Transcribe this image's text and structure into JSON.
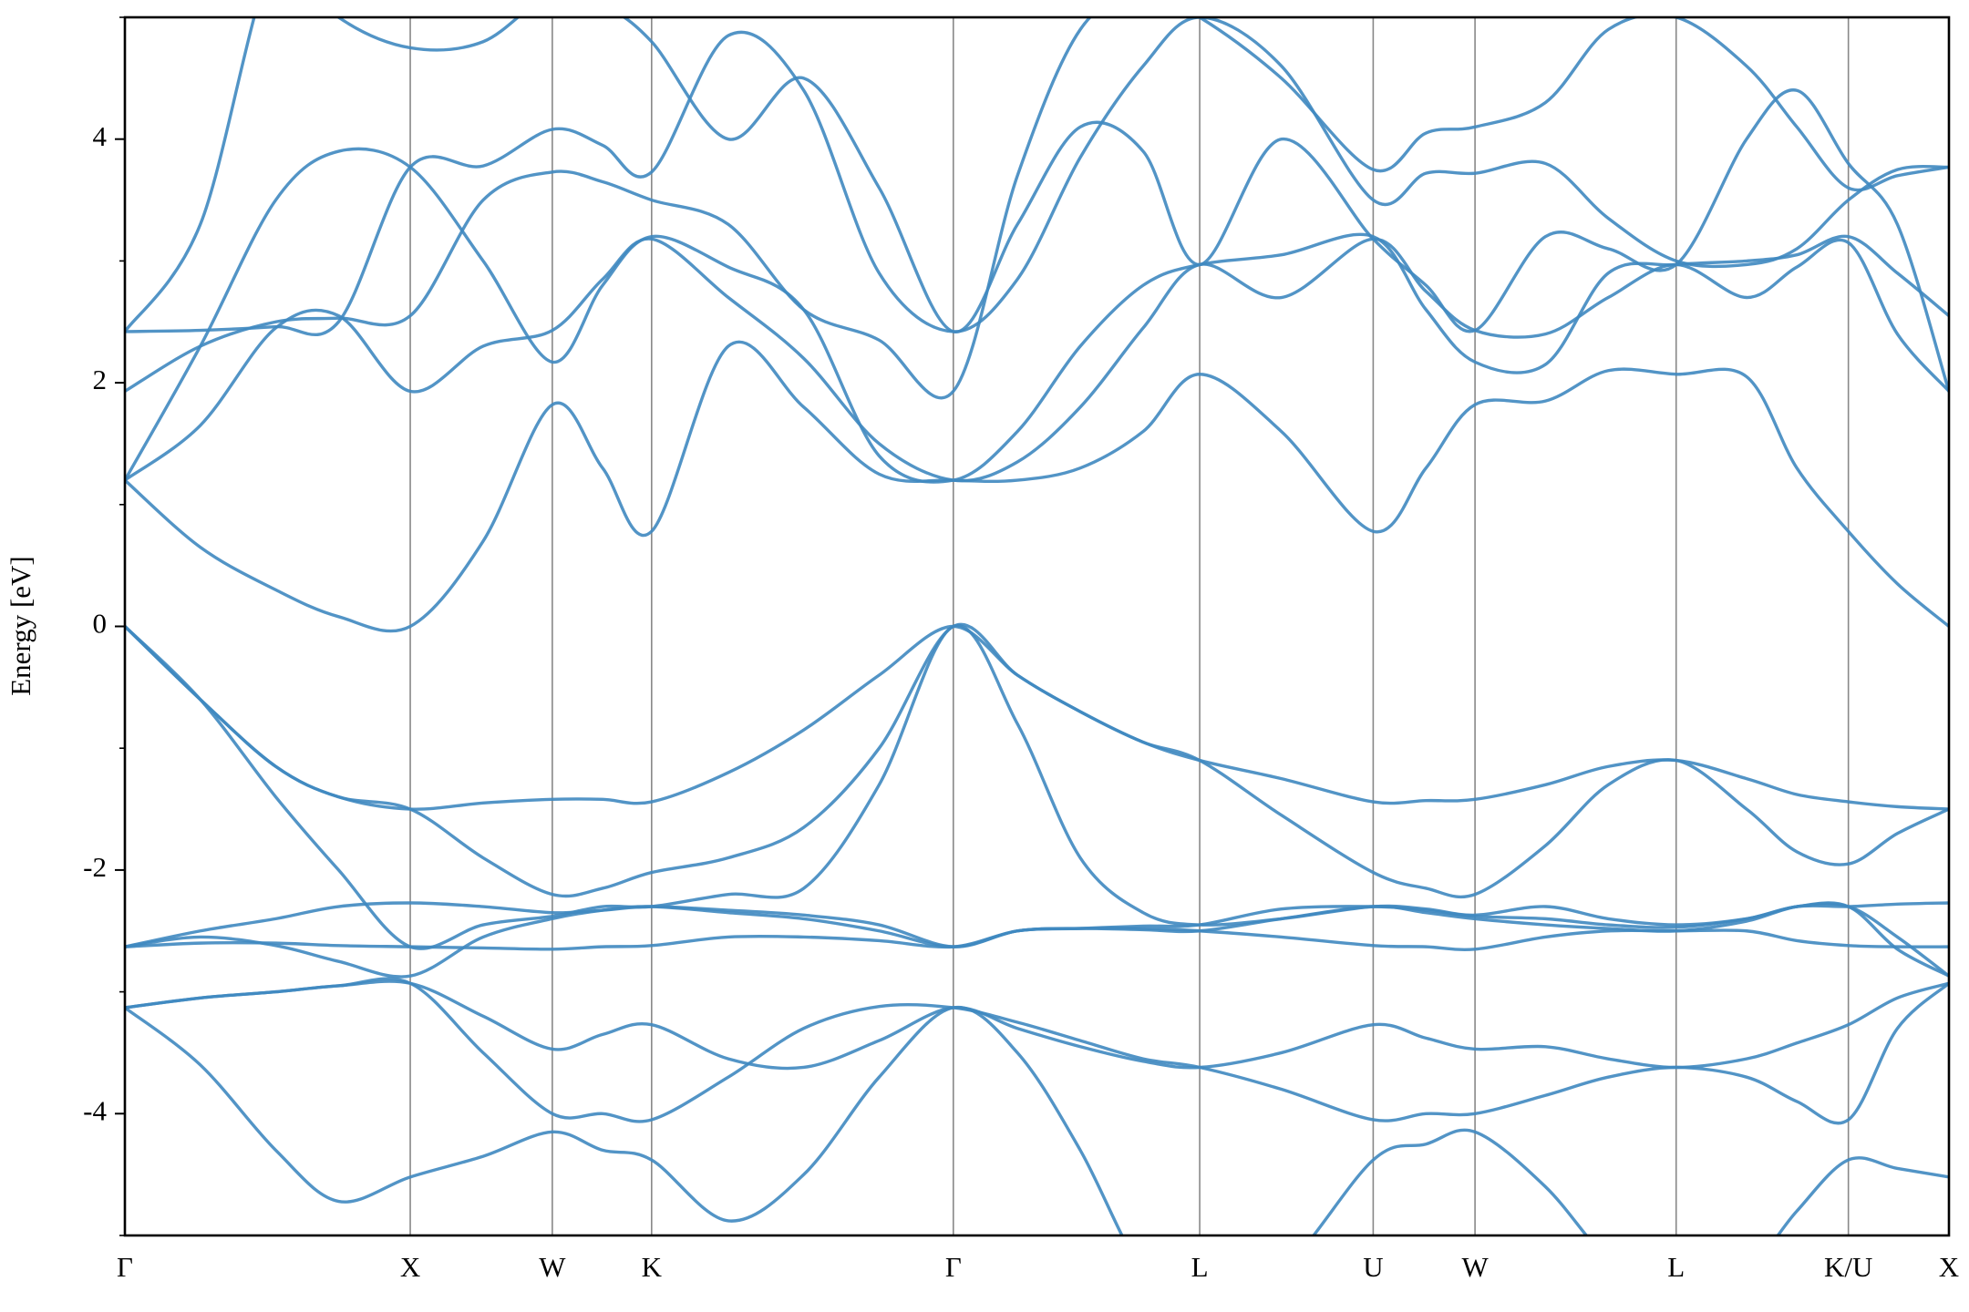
{
  "chart_data": {
    "type": "line",
    "ylabel": "Energy [eV]",
    "color": "#3f88c0",
    "x": [
      0,
      0.6,
      1.2,
      1.7,
      2.27,
      2.85,
      3.4,
      3.8,
      4.19,
      4.8,
      5.4,
      6.0,
      6.59,
      7.1,
      7.6,
      8.1,
      8.55,
      9.2,
      9.93,
      10.35,
      10.74,
      11.3,
      11.8,
      12.34,
      12.9,
      13.3,
      13.71,
      14.1,
      14.51
    ],
    "series": [
      {
        "values": [
          -3.13,
          -3.6,
          -4.3,
          -4.72,
          -4.52,
          -4.35,
          -4.15,
          -4.3,
          -4.38,
          -4.88,
          -4.5,
          -3.7,
          -3.13,
          -3.5,
          -4.3,
          -5.3,
          -5.6,
          -5.3,
          -4.38,
          -4.25,
          -4.15,
          -4.6,
          -5.2,
          -5.6,
          -5.3,
          -4.8,
          -4.38,
          -4.45,
          -4.52
        ]
      },
      {
        "values": [
          -3.13,
          -3.05,
          -3.0,
          -2.95,
          -2.93,
          -3.2,
          -3.47,
          -3.35,
          -3.27,
          -3.55,
          -3.62,
          -3.4,
          -3.13,
          -3.3,
          -3.45,
          -3.57,
          -3.62,
          -3.5,
          -3.27,
          -3.38,
          -3.47,
          -3.45,
          -3.55,
          -3.62,
          -3.55,
          -3.42,
          -3.27,
          -3.05,
          -2.93
        ]
      },
      {
        "values": [
          -3.13,
          -3.05,
          -3.0,
          -2.95,
          -2.93,
          -3.5,
          -4.0,
          -4.0,
          -4.05,
          -3.7,
          -3.3,
          -3.12,
          -3.13,
          -3.25,
          -3.4,
          -3.55,
          -3.62,
          -3.8,
          -4.05,
          -4.0,
          -4.0,
          -3.85,
          -3.7,
          -3.62,
          -3.7,
          -3.9,
          -4.05,
          -3.3,
          -2.93
        ]
      },
      {
        "values": [
          -2.63,
          -2.55,
          -2.62,
          -2.75,
          -2.87,
          -2.55,
          -2.4,
          -2.33,
          -2.3,
          -2.35,
          -2.4,
          -2.5,
          -2.63,
          -2.5,
          -2.48,
          -2.49,
          -2.5,
          -2.4,
          -2.3,
          -2.35,
          -2.4,
          -2.45,
          -2.48,
          -2.5,
          -2.42,
          -2.3,
          -2.3,
          -2.55,
          -2.87
        ]
      },
      {
        "values": [
          -2.63,
          -2.6,
          -2.6,
          -2.62,
          -2.63,
          -2.64,
          -2.65,
          -2.63,
          -2.62,
          -2.55,
          -2.55,
          -2.58,
          -2.63,
          -2.5,
          -2.48,
          -2.48,
          -2.5,
          -2.55,
          -2.62,
          -2.63,
          -2.65,
          -2.55,
          -2.5,
          -2.5,
          -2.5,
          -2.58,
          -2.62,
          -2.63,
          -2.63
        ]
      },
      {
        "values": [
          -2.63,
          -2.5,
          -2.4,
          -2.3,
          -2.27,
          -2.3,
          -2.35,
          -2.33,
          -2.3,
          -2.33,
          -2.37,
          -2.45,
          -2.63,
          -2.5,
          -2.48,
          -2.46,
          -2.45,
          -2.32,
          -2.3,
          -2.33,
          -2.38,
          -2.4,
          -2.45,
          -2.47,
          -2.4,
          -2.3,
          -2.3,
          -2.28,
          -2.27
        ]
      },
      {
        "values": [
          0,
          -0.6,
          -1.4,
          -2.0,
          -2.63,
          -2.45,
          -2.38,
          -2.3,
          -2.3,
          -2.2,
          -2.15,
          -1.3,
          0,
          -0.8,
          -1.9,
          -2.35,
          -2.45,
          -2.4,
          -2.3,
          -2.32,
          -2.37,
          -2.3,
          -2.4,
          -2.45,
          -2.4,
          -2.3,
          -2.3,
          -2.65,
          -2.87
        ]
      },
      {
        "values": [
          0,
          -0.6,
          -1.15,
          -1.4,
          -1.5,
          -1.9,
          -2.2,
          -2.15,
          -2.02,
          -1.9,
          -1.65,
          -1.0,
          0,
          -0.4,
          -0.7,
          -0.95,
          -1.1,
          -1.55,
          -2.02,
          -2.15,
          -2.2,
          -1.8,
          -1.3,
          -1.1,
          -1.5,
          -1.85,
          -1.95,
          -1.7,
          -1.5
        ]
      },
      {
        "values": [
          0,
          -0.6,
          -1.15,
          -1.4,
          -1.5,
          -1.45,
          -1.42,
          -1.42,
          -1.44,
          -1.2,
          -0.85,
          -0.4,
          0,
          -0.4,
          -0.7,
          -0.95,
          -1.1,
          -1.25,
          -1.44,
          -1.43,
          -1.42,
          -1.3,
          -1.15,
          -1.1,
          -1.25,
          -1.38,
          -1.44,
          -1.48,
          -1.5
        ]
      },
      {
        "values": [
          1.2,
          0.65,
          0.3,
          0.08,
          0.0,
          0.7,
          1.82,
          1.3,
          0.78,
          2.3,
          1.8,
          1.25,
          1.2,
          1.2,
          1.3,
          1.6,
          2.07,
          1.6,
          0.78,
          1.3,
          1.82,
          1.85,
          2.1,
          2.07,
          2.05,
          1.3,
          0.78,
          0.35,
          0.0
        ]
      },
      {
        "values": [
          1.2,
          1.65,
          2.45,
          2.55,
          1.93,
          2.3,
          2.43,
          2.85,
          3.18,
          2.7,
          2.2,
          1.5,
          1.2,
          1.35,
          1.8,
          2.45,
          2.97,
          2.7,
          3.18,
          2.75,
          2.43,
          2.4,
          2.7,
          2.97,
          2.7,
          2.95,
          3.15,
          2.4,
          1.93
        ]
      },
      {
        "values": [
          1.2,
          2.3,
          3.5,
          3.9,
          3.77,
          3.0,
          2.17,
          2.8,
          3.2,
          2.95,
          2.6,
          1.4,
          1.2,
          1.6,
          2.3,
          2.8,
          2.97,
          3.05,
          3.2,
          2.6,
          2.17,
          2.15,
          2.9,
          2.97,
          3.0,
          3.05,
          3.2,
          2.9,
          2.55
        ]
      },
      {
        "values": [
          1.93,
          2.3,
          2.5,
          2.53,
          2.55,
          3.5,
          3.73,
          3.65,
          3.5,
          3.3,
          2.6,
          2.35,
          1.93,
          3.7,
          4.9,
          5.2,
          5.0,
          4.5,
          3.75,
          4.05,
          4.1,
          4.3,
          4.9,
          5.0,
          4.6,
          4.1,
          3.6,
          3.7,
          3.77
        ]
      },
      {
        "values": [
          2.42,
          2.43,
          2.46,
          2.5,
          3.77,
          3.78,
          4.08,
          3.95,
          3.73,
          4.85,
          4.4,
          2.9,
          2.42,
          2.85,
          3.85,
          4.6,
          5.0,
          4.6,
          3.5,
          3.72,
          3.72,
          3.8,
          3.35,
          3.0,
          2.97,
          3.1,
          3.5,
          3.75,
          3.77
        ]
      },
      {
        "values": [
          2.42,
          3.3,
          5.5,
          5.0,
          4.75,
          4.8,
          5.2,
          5.1,
          4.8,
          4.0,
          4.5,
          3.6,
          2.42,
          3.3,
          4.1,
          3.9,
          2.97,
          4.0,
          3.18,
          2.8,
          2.43,
          3.2,
          3.1,
          2.97,
          4.0,
          4.4,
          3.8,
          3.3,
          1.93
        ]
      }
    ],
    "xlim": [
      0,
      14.51
    ],
    "xticks": [
      {
        "value": 0,
        "label": "Γ"
      },
      {
        "value": 2.27,
        "label": "X"
      },
      {
        "value": 3.4,
        "label": "W"
      },
      {
        "value": 4.19,
        "label": "K"
      },
      {
        "value": 6.59,
        "label": "Γ"
      },
      {
        "value": 8.55,
        "label": "L"
      },
      {
        "value": 9.93,
        "label": "U"
      },
      {
        "value": 10.74,
        "label": "W"
      },
      {
        "value": 12.34,
        "label": "L"
      },
      {
        "value": 13.71,
        "label": "K/U"
      },
      {
        "value": 14.51,
        "label": "X"
      }
    ],
    "ylim": [
      -5,
      5
    ],
    "yticks": [
      -4,
      -2,
      0,
      2,
      4
    ],
    "yminorticks": [
      -5,
      -3,
      -1,
      1,
      3,
      5
    ]
  }
}
